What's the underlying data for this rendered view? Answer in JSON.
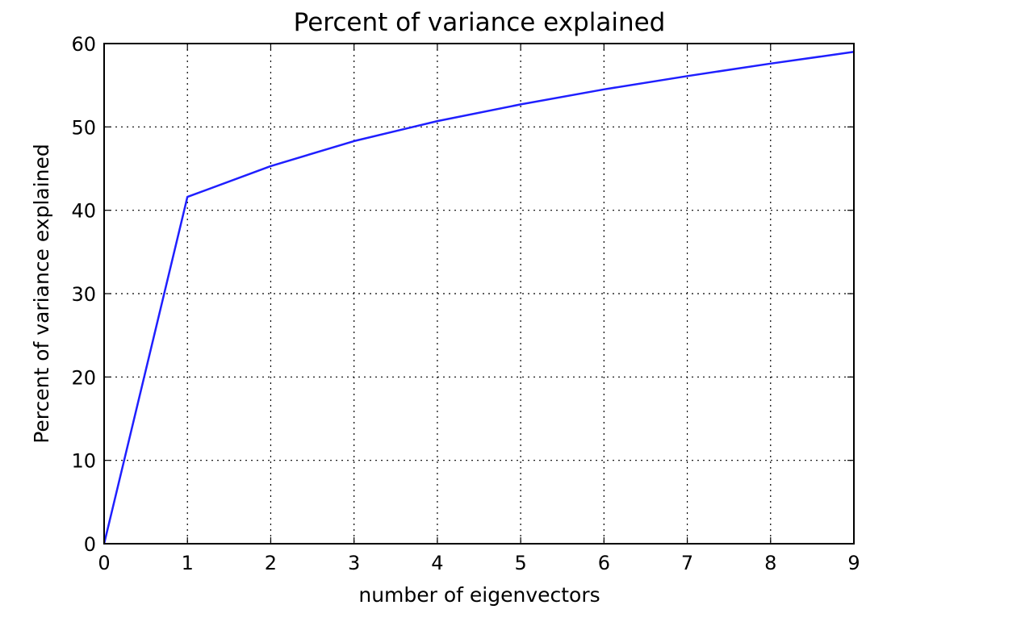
{
  "chart_data": {
    "type": "line",
    "title": "Percent of variance explained",
    "xlabel": "number of eigenvectors",
    "ylabel": "Percent of variance explained",
    "xlim": [
      0,
      9
    ],
    "ylim": [
      0,
      60
    ],
    "xticks": [
      0,
      1,
      2,
      3,
      4,
      5,
      6,
      7,
      8,
      9
    ],
    "yticks": [
      0,
      10,
      20,
      30,
      40,
      50,
      60
    ],
    "grid": true,
    "x": [
      0,
      1,
      2,
      3,
      4,
      5,
      6,
      7,
      8,
      9
    ],
    "series": [
      {
        "color": "#1f1fff",
        "values": [
          0,
          41.6,
          45.3,
          48.3,
          50.7,
          52.7,
          54.5,
          56.1,
          57.6,
          59.0
        ]
      }
    ]
  }
}
